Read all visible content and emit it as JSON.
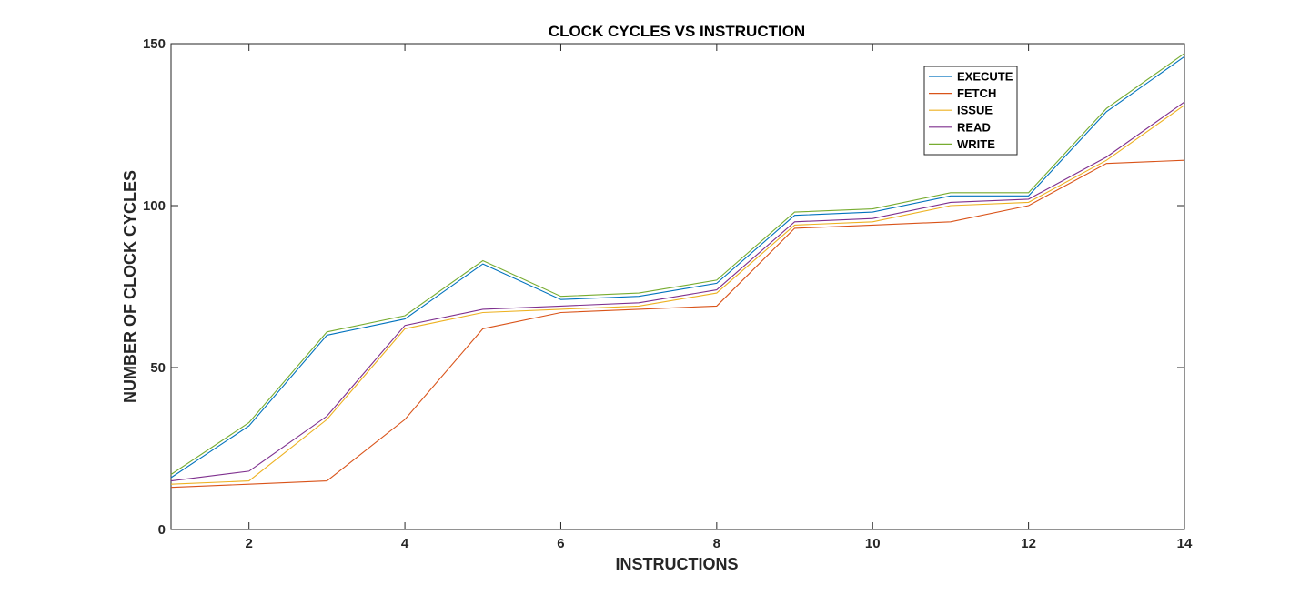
{
  "chart_data": {
    "type": "line",
    "title": "CLOCK CYCLES VS INSTRUCTION",
    "xlabel": "INSTRUCTIONS",
    "ylabel": "NUMBER OF CLOCK CYCLES",
    "xlim": [
      1,
      14
    ],
    "ylim": [
      0,
      150
    ],
    "xticks": [
      2,
      4,
      6,
      8,
      10,
      12,
      14
    ],
    "yticks": [
      0,
      50,
      100,
      150
    ],
    "grid": false,
    "legend_position": "top-right",
    "x": [
      1,
      2,
      3,
      4,
      5,
      6,
      7,
      8,
      9,
      10,
      11,
      12,
      13,
      14
    ],
    "series": [
      {
        "name": "EXECUTE",
        "color": "#0072BD",
        "values": [
          16,
          32,
          60,
          65,
          82,
          71,
          72,
          76,
          97,
          98,
          103,
          103,
          129,
          146
        ]
      },
      {
        "name": "FETCH",
        "color": "#D95319",
        "values": [
          13,
          14,
          15,
          34,
          62,
          67,
          68,
          69,
          93,
          94,
          95,
          100,
          113,
          114
        ]
      },
      {
        "name": "ISSUE",
        "color": "#EDB120",
        "values": [
          14,
          15,
          34,
          62,
          67,
          68,
          69,
          73,
          94,
          95,
          100,
          101,
          114,
          131
        ]
      },
      {
        "name": "READ",
        "color": "#7E2F8E",
        "values": [
          15,
          18,
          35,
          63,
          68,
          69,
          70,
          74,
          95,
          96,
          101,
          102,
          115,
          132
        ]
      },
      {
        "name": "WRITE",
        "color": "#77AC30",
        "values": [
          17,
          33,
          61,
          66,
          83,
          72,
          73,
          77,
          98,
          99,
          104,
          104,
          130,
          147
        ]
      }
    ]
  }
}
